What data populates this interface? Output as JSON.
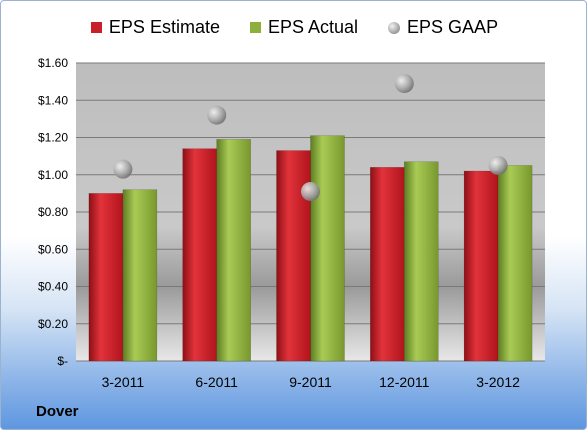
{
  "chart_data": {
    "type": "bar",
    "categories": [
      "3-2011",
      "6-2011",
      "9-2011",
      "12-2011",
      "3-2012"
    ],
    "series": [
      {
        "name": "EPS Estimate",
        "kind": "bar",
        "color": "#c8202a",
        "values": [
          0.9,
          1.14,
          1.13,
          1.04,
          1.02
        ]
      },
      {
        "name": "EPS Actual",
        "kind": "bar",
        "color": "#8db03c",
        "values": [
          0.92,
          1.19,
          1.21,
          1.07,
          1.05
        ]
      },
      {
        "name": "EPS GAAP",
        "kind": "marker",
        "color": "#9aa0a6",
        "values": [
          1.03,
          1.32,
          0.91,
          1.49,
          1.05
        ]
      }
    ],
    "ylim": [
      0,
      1.6
    ],
    "yticks": [
      {
        "value": 1.6,
        "label": "$1.60"
      },
      {
        "value": 1.4,
        "label": "$1.40"
      },
      {
        "value": 1.2,
        "label": "$1.20"
      },
      {
        "value": 1.0,
        "label": "$1.00"
      },
      {
        "value": 0.8,
        "label": "$0.80"
      },
      {
        "value": 0.6,
        "label": "$0.60"
      },
      {
        "value": 0.4,
        "label": "$0.40"
      },
      {
        "value": 0.2,
        "label": "$0.20"
      },
      {
        "value": 0.0,
        "label": "$-"
      }
    ],
    "grid": true,
    "legend_position": "top",
    "company": "Dover"
  }
}
